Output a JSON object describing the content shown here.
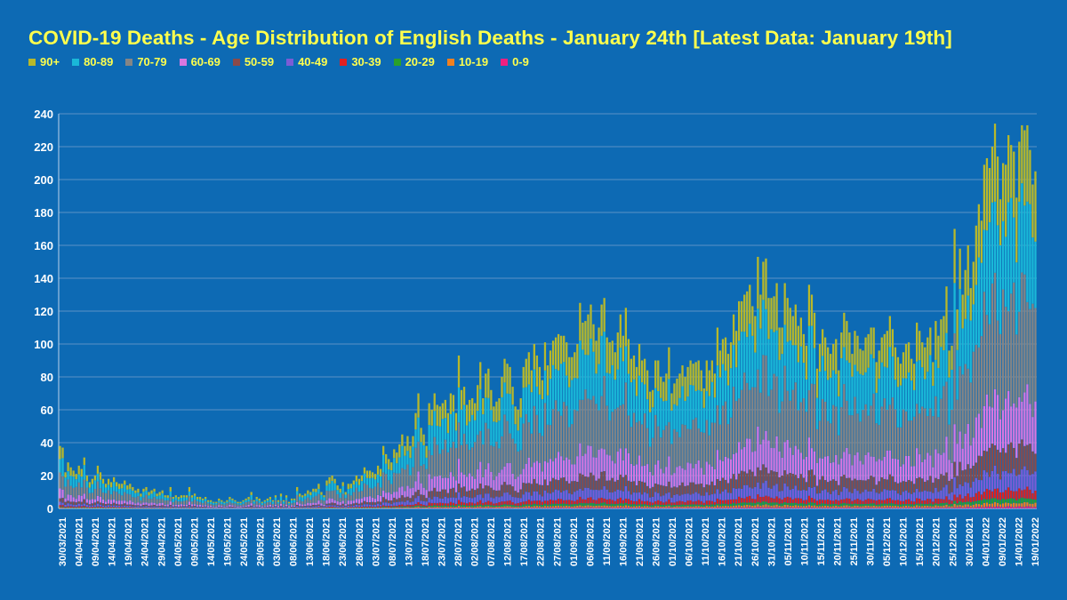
{
  "chart_data": {
    "type": "bar",
    "stacked": true,
    "title": "COVID-19 Deaths - Age Distribution of English Deaths - January 24th [Latest Data: January 19th]",
    "ylim": [
      0,
      240
    ],
    "y_ticks": [
      0,
      20,
      40,
      60,
      80,
      100,
      120,
      140,
      160,
      180,
      200,
      220,
      240
    ],
    "grid": true,
    "legend_placement": "top-left",
    "x_tick_labels": [
      "30/03/2021",
      "04/04/2021",
      "09/04/2021",
      "14/04/2021",
      "19/04/2021",
      "24/04/2021",
      "29/04/2021",
      "04/05/2021",
      "09/05/2021",
      "14/05/2021",
      "19/05/2021",
      "24/05/2021",
      "29/05/2021",
      "03/06/2021",
      "08/06/2021",
      "13/06/2021",
      "18/06/2021",
      "23/06/2021",
      "28/06/2021",
      "03/07/2021",
      "08/07/2021",
      "13/07/2021",
      "18/07/2021",
      "23/07/2021",
      "28/07/2021",
      "02/08/2021",
      "07/08/2021",
      "12/08/2021",
      "17/08/2021",
      "22/08/2021",
      "27/08/2021",
      "01/09/2021",
      "06/09/2021",
      "11/09/2021",
      "16/09/2021",
      "21/09/2021",
      "26/09/2021",
      "01/10/2021",
      "06/10/2021",
      "11/10/2021",
      "16/10/2021",
      "21/10/2021",
      "26/10/2021",
      "31/10/2021",
      "05/11/2021",
      "10/11/2021",
      "15/11/2021",
      "20/11/2021",
      "25/11/2021",
      "30/11/2021",
      "05/12/2021",
      "10/12/2021",
      "15/12/2021",
      "20/12/2021",
      "25/12/2021",
      "30/12/2021",
      "04/01/2022",
      "09/01/2022",
      "14/01/2022",
      "19/01/2022"
    ],
    "series": [
      {
        "name": "90+",
        "color": "#b8b82a"
      },
      {
        "name": "80-89",
        "color": "#1ab8d8"
      },
      {
        "name": "70-79",
        "color": "#858585"
      },
      {
        "name": "60-69",
        "color": "#d877e0"
      },
      {
        "name": "50-59",
        "color": "#8a4a4a"
      },
      {
        "name": "40-49",
        "color": "#7b5cd6"
      },
      {
        "name": "30-39",
        "color": "#e02020"
      },
      {
        "name": "20-29",
        "color": "#2aa02a"
      },
      {
        "name": "10-19",
        "color": "#f08020"
      },
      {
        "name": "0-9",
        "color": "#ee1f80"
      }
    ],
    "totals_approx": [
      38,
      37,
      22,
      28,
      25,
      23,
      21,
      26,
      24,
      31,
      20,
      16,
      18,
      20,
      26,
      22,
      18,
      15,
      18,
      16,
      19,
      16,
      15,
      15,
      17,
      14,
      15,
      13,
      11,
      12,
      9,
      12,
      13,
      10,
      11,
      12,
      9,
      10,
      11,
      8,
      8,
      13,
      7,
      8,
      7,
      8,
      8,
      8,
      13,
      8,
      9,
      7,
      7,
      6,
      7,
      5,
      5,
      4,
      4,
      6,
      5,
      4,
      5,
      7,
      6,
      5,
      4,
      4,
      5,
      6,
      7,
      10,
      5,
      7,
      6,
      4,
      5,
      6,
      7,
      5,
      8,
      5,
      9,
      5,
      8,
      4,
      6,
      6,
      13,
      9,
      8,
      9,
      11,
      10,
      12,
      12,
      15,
      10,
      8,
      17,
      19,
      20,
      18,
      14,
      12,
      16,
      10,
      15,
      15,
      17,
      20,
      18,
      20,
      25,
      23,
      23,
      22,
      21,
      26,
      24,
      38,
      33,
      30,
      28,
      36,
      34,
      39,
      45,
      38,
      44,
      38,
      44,
      58,
      70,
      49,
      45,
      38,
      64,
      60,
      70,
      63,
      62,
      64,
      66,
      58,
      70,
      69,
      58,
      93,
      72,
      74,
      63,
      66,
      67,
      64,
      75,
      89,
      67,
      82,
      85,
      72,
      62,
      65,
      67,
      80,
      91,
      88,
      86,
      74,
      62,
      60,
      67,
      86,
      91,
      95,
      84,
      100,
      93,
      86,
      78,
      101,
      87,
      96,
      102,
      104,
      106,
      105,
      105,
      101,
      92,
      92,
      95,
      100,
      125,
      113,
      114,
      118,
      124,
      112,
      102,
      110,
      124,
      128,
      104,
      101,
      102,
      95,
      107,
      118,
      105,
      122,
      103,
      91,
      93,
      86,
      100,
      90,
      91,
      84,
      71,
      72,
      90,
      90,
      80,
      77,
      82,
      98,
      70,
      76,
      79,
      82,
      87,
      80,
      86,
      90,
      88,
      89,
      90,
      84,
      73,
      90,
      84,
      90,
      82,
      110,
      96,
      103,
      104,
      94,
      101,
      118,
      108,
      126,
      126,
      130,
      132,
      136,
      123,
      117,
      153,
      130,
      150,
      152,
      128,
      128,
      129,
      137,
      110,
      110,
      137,
      128,
      122,
      117,
      124,
      111,
      116,
      106,
      99,
      136,
      130,
      119,
      85,
      100,
      109,
      104,
      98,
      94,
      100,
      103,
      84,
      107,
      119,
      114,
      107,
      94,
      108,
      105,
      97,
      96,
      104,
      106,
      110,
      110,
      89,
      96,
      104,
      106,
      108,
      117,
      109,
      98,
      92,
      88,
      95,
      100,
      101,
      91,
      88,
      113,
      108,
      101,
      98,
      104,
      110,
      89,
      114,
      105,
      115,
      117,
      135,
      96,
      99,
      170,
      121,
      158,
      130,
      145,
      160,
      134,
      150,
      172,
      185,
      175,
      209,
      213,
      207,
      220,
      234,
      214,
      188,
      210,
      209,
      227,
      221,
      217,
      189,
      223,
      233,
      230,
      233,
      218,
      197,
      205
    ],
    "xlabel": "",
    "ylabel": ""
  }
}
